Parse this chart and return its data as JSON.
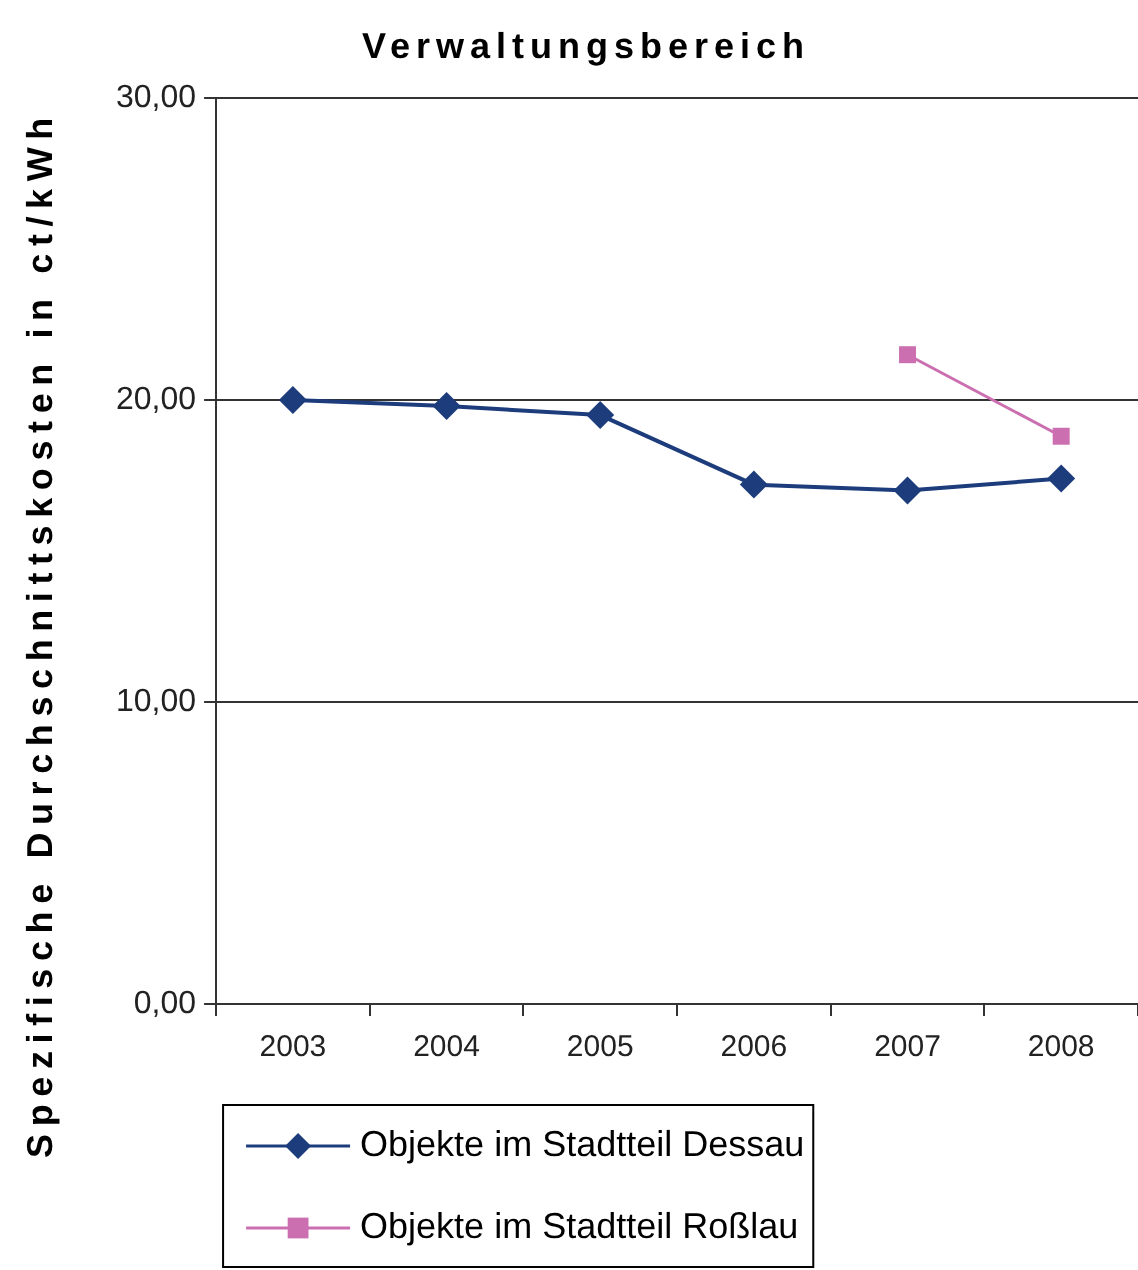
{
  "chart_data": {
    "type": "line",
    "title": "Verwaltungsbereich",
    "ylabel": "Spezifische Durchschnittskosten in ct/kWh",
    "categories": [
      "2003",
      "2004",
      "2005",
      "2006",
      "2007",
      "2008"
    ],
    "series": [
      {
        "name": "Objekte im Stadtteil Dessau",
        "color": "#1c3c7c",
        "marker": "diamond",
        "values": [
          20.0,
          19.8,
          19.5,
          17.2,
          17.0,
          17.4
        ]
      },
      {
        "name": "Objekte im Stadtteil Roßlau",
        "color": "#cc6fb0",
        "marker": "square",
        "values": [
          null,
          null,
          null,
          null,
          21.5,
          18.8
        ]
      }
    ],
    "ylim": [
      0,
      30
    ],
    "yticks": [
      {
        "value": 0,
        "label": "0,00"
      },
      {
        "value": 10,
        "label": "10,00"
      },
      {
        "value": 20,
        "label": "20,00"
      },
      {
        "value": 30,
        "label": "30,00"
      }
    ],
    "grid": "y",
    "legend": "bottom left",
    "line_style": "solid"
  }
}
